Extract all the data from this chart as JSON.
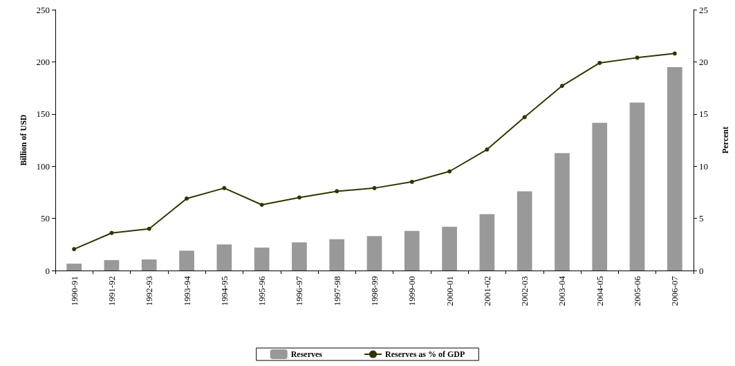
{
  "chart_data": {
    "type": "bar",
    "ylabel": "Billion of USD",
    "y2label": "Percent",
    "categories": [
      "1990-91",
      "1991-92",
      "1992-93",
      "1993-94",
      "1994-95",
      "1995-96",
      "1996-97",
      "1997-98",
      "1998-99",
      "1999-00",
      "2000-01",
      "2001-02",
      "2002-03",
      "2003-04",
      "2004-05",
      "2005-06",
      "2006-07"
    ],
    "series": [
      {
        "name": "Reserves",
        "color": "#999999",
        "values": [
          6.6,
          10,
          10.6,
          19,
          25,
          22,
          27,
          30,
          33,
          38,
          42,
          54,
          76,
          112.5,
          141.5,
          161,
          195
        ]
      },
      {
        "name": "Reserves as % of GDP",
        "type": "line",
        "axis": "y2",
        "color": "#333300",
        "marker": "circle",
        "values": [
          2.05,
          3.6,
          4.0,
          6.9,
          7.9,
          6.3,
          7.0,
          7.6,
          7.9,
          8.5,
          9.5,
          11.6,
          14.7,
          17.7,
          19.9,
          20.4,
          20.8
        ]
      }
    ],
    "ylim": [
      0,
      250
    ],
    "yticks": [
      0,
      50,
      100,
      150,
      200,
      250
    ],
    "y2lim": [
      0,
      25
    ],
    "y2ticks": [
      0,
      5,
      10,
      15,
      20,
      25
    ],
    "grid": false,
    "legend": "bottom"
  }
}
